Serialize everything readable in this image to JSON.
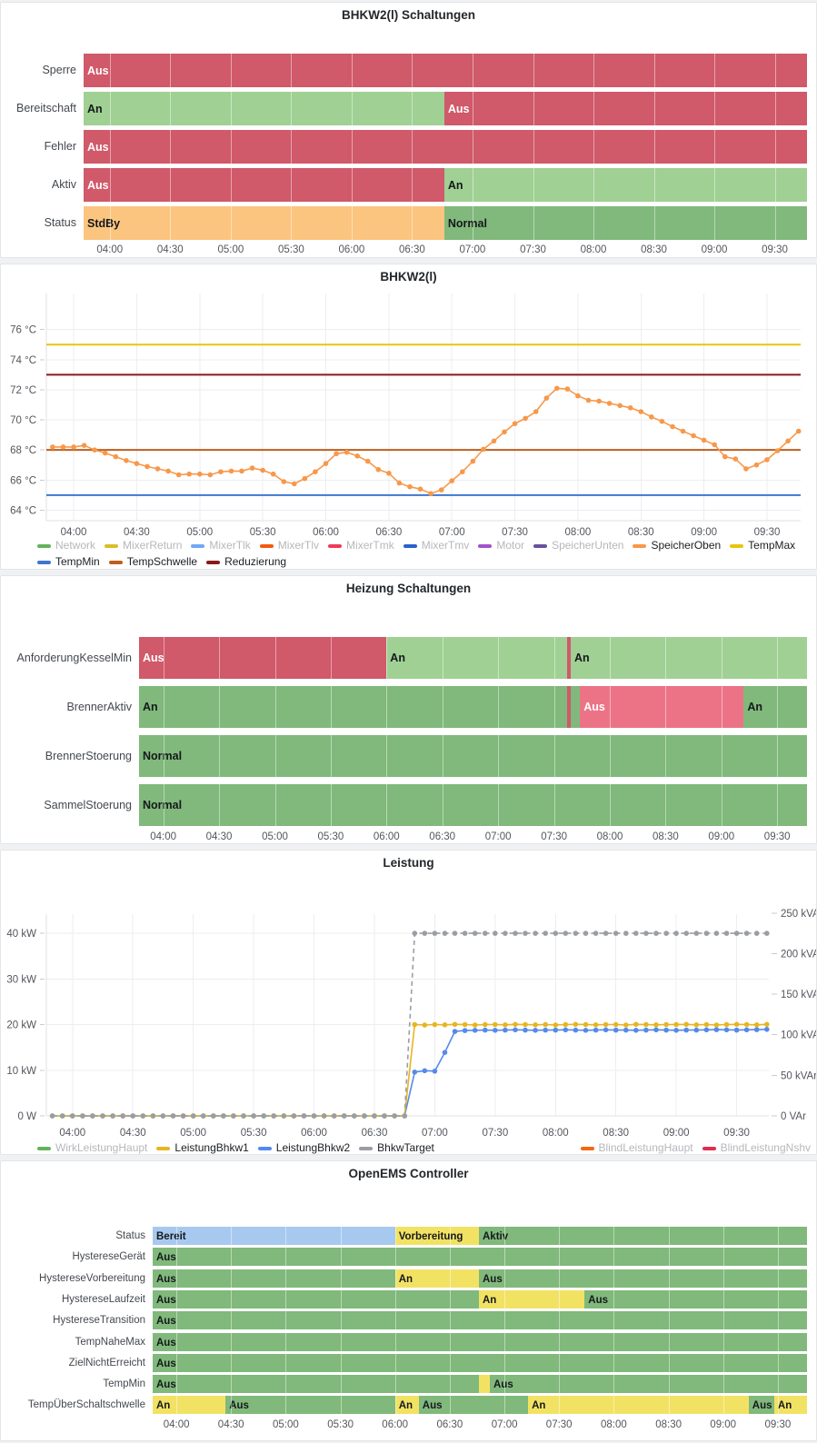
{
  "palette": {
    "red": "#D0596A",
    "lightRed": "#EC7386",
    "green": "#80B97B",
    "lightGreen": "#A0D094",
    "orange": "#FBC57F",
    "stateBlue": "#A8C9EF",
    "stateYellow": "#F2E264"
  },
  "time_axis": {
    "start": "03:47",
    "end": "09:46",
    "ticks": [
      "04:00",
      "04:30",
      "05:00",
      "05:30",
      "06:00",
      "06:30",
      "07:00",
      "07:30",
      "08:00",
      "08:30",
      "09:00",
      "09:30"
    ]
  },
  "chart_data": [
    {
      "id": "p1",
      "type": "state-timeline",
      "title": "BHKW2(l) Schaltungen",
      "rows": [
        {
          "label": "Sperre",
          "segments": [
            [
              "Aus",
              "red",
              "03:47",
              "09:46",
              1
            ]
          ]
        },
        {
          "label": "Bereitschaft",
          "segments": [
            [
              "An",
              "lightGreen",
              "03:47",
              "06:46",
              1
            ],
            [
              "Aus",
              "red",
              "06:46",
              "09:46",
              1
            ]
          ]
        },
        {
          "label": "Fehler",
          "segments": [
            [
              "Aus",
              "red",
              "03:47",
              "09:46",
              1
            ]
          ]
        },
        {
          "label": "Aktiv",
          "segments": [
            [
              "Aus",
              "red",
              "03:47",
              "06:46",
              1
            ],
            [
              "An",
              "lightGreen",
              "06:46",
              "09:46",
              1
            ]
          ]
        },
        {
          "label": "Status",
          "segments": [
            [
              "StdBy",
              "orange",
              "03:47",
              "06:46",
              1
            ],
            [
              "Normal",
              "green",
              "06:46",
              "09:46",
              1
            ]
          ]
        }
      ]
    },
    {
      "id": "p2",
      "type": "line",
      "title": "BHKW2(l)",
      "ylim": [
        63.3,
        78.4
      ],
      "yticks": [
        {
          "v": 64,
          "label": "64 °C"
        },
        {
          "v": 66,
          "label": "66 °C"
        },
        {
          "v": 68,
          "label": "68 °C"
        },
        {
          "v": 70,
          "label": "70 °C"
        },
        {
          "v": 72,
          "label": "72 °C"
        },
        {
          "v": 74,
          "label": "74 °C"
        },
        {
          "v": 76,
          "label": "76 °C"
        }
      ],
      "x_start": "03:50",
      "x_step_min": 5,
      "thresholds": [
        {
          "name": "TempMax",
          "value": 75,
          "color": "#E9C410"
        },
        {
          "name": "Reduzierung",
          "value": 73,
          "color": "#8A1A1A"
        },
        {
          "name": "TempSchwelle",
          "value": 68,
          "color": "#BE5E1E"
        },
        {
          "name": "TempMin",
          "value": 65,
          "color": "#3E76D0"
        }
      ],
      "series": [
        {
          "name": "SpeicherOben",
          "color": "#F7984A",
          "dash": false,
          "markers": true,
          "values": [
            68.2,
            68.2,
            68.2,
            68.3,
            68.0,
            67.8,
            67.55,
            67.3,
            67.1,
            66.9,
            66.75,
            66.6,
            66.35,
            66.4,
            66.4,
            66.35,
            66.55,
            66.6,
            66.6,
            66.8,
            66.65,
            66.4,
            65.9,
            65.75,
            66.1,
            66.55,
            67.1,
            67.75,
            67.85,
            67.6,
            67.25,
            66.7,
            66.45,
            65.8,
            65.55,
            65.4,
            65.1,
            65.35,
            65.95,
            66.55,
            67.25,
            68.05,
            68.6,
            69.2,
            69.75,
            70.1,
            70.55,
            71.45,
            72.1,
            72.05,
            71.6,
            71.3,
            71.25,
            71.1,
            70.95,
            70.8,
            70.55,
            70.2,
            69.9,
            69.55,
            69.25,
            68.95,
            68.65,
            68.35,
            67.55,
            67.4,
            66.75,
            67.0,
            67.35,
            67.95,
            68.6,
            69.25
          ]
        }
      ],
      "legend": {
        "left": [
          {
            "label": "Network",
            "color": "#62B35A",
            "active": false
          },
          {
            "label": "MixerReturn",
            "color": "#D9BE26",
            "active": false
          },
          {
            "label": "MixerTlk",
            "color": "#6FA9F2",
            "active": false
          },
          {
            "label": "MixerTlv",
            "color": "#F4590F",
            "active": false
          },
          {
            "label": "MixerTmk",
            "color": "#EF3B58",
            "active": false
          },
          {
            "label": "MixerTmv",
            "color": "#2A62CE",
            "active": false
          },
          {
            "label": "Motor",
            "color": "#A352CC",
            "active": false
          },
          {
            "label": "SpeicherUnten",
            "color": "#69519E",
            "active": false
          },
          {
            "label": "SpeicherOben",
            "color": "#F7984A",
            "active": true
          },
          {
            "label": "TempMax",
            "color": "#E9C410",
            "active": true
          },
          {
            "label": "TempMin",
            "color": "#3E76D0",
            "active": true
          },
          {
            "label": "TempSchwelle",
            "color": "#BE5E1E",
            "active": true
          },
          {
            "label": "Reduzierung",
            "color": "#8A1A1A",
            "active": true
          }
        ],
        "right": []
      }
    },
    {
      "id": "p3",
      "type": "state-timeline",
      "title": "Heizung Schaltungen",
      "rows": [
        {
          "label": "AnforderungKesselMin",
          "segments": [
            [
              "Aus",
              "red",
              "03:47",
              "06:00",
              1
            ],
            [
              "An",
              "lightGreen",
              "06:00",
              "07:37",
              1
            ],
            [
              "",
              "red",
              "07:37",
              "07:39",
              0
            ],
            [
              "An",
              "lightGreen",
              "07:39",
              "09:46",
              1
            ]
          ]
        },
        {
          "label": "BrennerAktiv",
          "segments": [
            [
              "An",
              "green",
              "03:47",
              "07:37",
              1
            ],
            [
              "",
              "red",
              "07:37",
              "07:39",
              0
            ],
            [
              "",
              "green",
              "07:39",
              "07:44",
              0
            ],
            [
              "Aus",
              "lightRed",
              "07:44",
              "09:12",
              1
            ],
            [
              "An",
              "green",
              "09:12",
              "09:46",
              1
            ]
          ]
        },
        {
          "label": "BrennerStoerung",
          "segments": [
            [
              "Normal",
              "green",
              "03:47",
              "09:46",
              1
            ]
          ]
        },
        {
          "label": "SammelStoerung",
          "segments": [
            [
              "Normal",
              "green",
              "03:47",
              "09:46",
              1
            ]
          ]
        }
      ]
    },
    {
      "id": "p4",
      "type": "line",
      "title": "Leistung",
      "ylim": [
        0,
        44.2
      ],
      "yticks": [
        {
          "v": 0,
          "label": "0 W"
        },
        {
          "v": 10,
          "label": "10 kW"
        },
        {
          "v": 20,
          "label": "20 kW"
        },
        {
          "v": 30,
          "label": "30 kW"
        },
        {
          "v": 40,
          "label": "40 kW"
        }
      ],
      "right_axis": {
        "kw_per_var": 0.17778,
        "ticks": [
          {
            "v": 0,
            "label": "0 VAr"
          },
          {
            "v": 50,
            "label": "50 kVAr"
          },
          {
            "v": 100,
            "label": "100 kVAr"
          },
          {
            "v": 150,
            "label": "150 kVAr"
          },
          {
            "v": 200,
            "label": "200 kVAr"
          },
          {
            "v": 250,
            "label": "250 kVAr"
          }
        ]
      },
      "x_start": "03:50",
      "x_step_min": 5,
      "thresholds": [],
      "series": [
        {
          "name": "LeistungBhkw2",
          "color": "#548AEB",
          "dash": false,
          "markers": true,
          "values": [
            0,
            0,
            0,
            0,
            0,
            0,
            0,
            0,
            0,
            0,
            0,
            0,
            0,
            0,
            0,
            0,
            0,
            0,
            0,
            0,
            0,
            0,
            0,
            0,
            0,
            0,
            0,
            0,
            0,
            0,
            0,
            0,
            0,
            0,
            0,
            0,
            9.6,
            9.9,
            9.8,
            13.9,
            18.5,
            18.7,
            18.75,
            18.8,
            18.75,
            18.8,
            18.85,
            18.8,
            18.75,
            18.8,
            18.8,
            18.85,
            18.8,
            18.75,
            18.8,
            18.85,
            18.8,
            18.8,
            18.75,
            18.8,
            18.85,
            18.8,
            18.75,
            18.8,
            18.8,
            18.85,
            18.9,
            18.85,
            18.8,
            18.85,
            18.9,
            18.95
          ]
        },
        {
          "name": "LeistungBhkw1",
          "color": "#E8B421",
          "dash": false,
          "markers": true,
          "values": [
            0,
            0,
            0,
            0,
            0,
            0,
            0,
            0,
            0,
            0,
            0,
            0,
            0,
            0,
            0,
            0,
            0,
            0,
            0,
            0,
            0,
            0,
            0,
            0,
            0,
            0,
            0,
            0,
            0,
            0,
            0,
            0,
            0,
            0,
            0,
            0,
            20,
            19.9,
            20,
            19.95,
            20.05,
            20,
            19.9,
            20,
            20,
            19.95,
            20.05,
            20,
            19.95,
            20,
            19.9,
            20,
            20.05,
            20,
            19.95,
            20,
            20,
            19.9,
            20.05,
            20,
            19.95,
            20,
            20,
            20.05,
            19.95,
            20,
            19.9,
            20,
            20.05,
            20,
            19.95,
            20.05
          ]
        },
        {
          "name": "BhkwTarget",
          "color": "#9A9EA3",
          "dash": true,
          "markers": true,
          "values": [
            0,
            0,
            0,
            0,
            0,
            0,
            0,
            0,
            0,
            0,
            0,
            0,
            0,
            0,
            0,
            0,
            0,
            0,
            0,
            0,
            0,
            0,
            0,
            0,
            0,
            0,
            0,
            0,
            0,
            0,
            0,
            0,
            0,
            0,
            0,
            0,
            40,
            40,
            40,
            40,
            40,
            40,
            40,
            40,
            40,
            40,
            40,
            40,
            40,
            40,
            40,
            40,
            40,
            40,
            40,
            40,
            40,
            40,
            40,
            40,
            40,
            40,
            40,
            40,
            40,
            40,
            40,
            40,
            40,
            40,
            40,
            40
          ]
        }
      ],
      "legend": {
        "left": [
          {
            "label": "WirkLeistungHaupt",
            "color": "#62B35A",
            "active": false
          },
          {
            "label": "LeistungBhkw1",
            "color": "#E8B421",
            "active": true
          },
          {
            "label": "LeistungBhkw2",
            "color": "#548AEB",
            "active": true
          },
          {
            "label": "BhkwTarget",
            "color": "#9A9EA3",
            "active": true
          }
        ],
        "right": [
          {
            "label": "BlindLeistungHaupt",
            "color": "#F4680F",
            "active": false
          },
          {
            "label": "BlindLeistungNshv",
            "color": "#E02D50",
            "active": false
          }
        ]
      }
    },
    {
      "id": "p5",
      "type": "state-timeline",
      "title": "OpenEMS Controller",
      "rows": [
        {
          "label": "Status",
          "segments": [
            [
              "Bereit",
              "stateBlue",
              "03:47",
              "06:00",
              1
            ],
            [
              "Vorbereitung",
              "stateYellow",
              "06:00",
              "06:46",
              1
            ],
            [
              "Aktiv",
              "green",
              "06:46",
              "09:46",
              1
            ]
          ]
        },
        {
          "label": "HystereseGerät",
          "segments": [
            [
              "Aus",
              "green",
              "03:47",
              "09:46",
              1
            ]
          ]
        },
        {
          "label": "HystereseVorbereitung",
          "segments": [
            [
              "Aus",
              "green",
              "03:47",
              "06:00",
              1
            ],
            [
              "An",
              "stateYellow",
              "06:00",
              "06:46",
              1
            ],
            [
              "Aus",
              "green",
              "06:46",
              "09:46",
              1
            ]
          ]
        },
        {
          "label": "HystereseLaufzeit",
          "segments": [
            [
              "Aus",
              "green",
              "03:47",
              "06:46",
              1
            ],
            [
              "An",
              "stateYellow",
              "06:46",
              "07:44",
              1
            ],
            [
              "Aus",
              "green",
              "07:44",
              "09:46",
              1
            ]
          ]
        },
        {
          "label": "HystereseTransition",
          "segments": [
            [
              "Aus",
              "green",
              "03:47",
              "09:46",
              1
            ]
          ]
        },
        {
          "label": "TempNaheMax",
          "segments": [
            [
              "Aus",
              "green",
              "03:47",
              "09:46",
              1
            ]
          ]
        },
        {
          "label": "ZielNichtErreicht",
          "segments": [
            [
              "Aus",
              "green",
              "03:47",
              "09:46",
              1
            ]
          ]
        },
        {
          "label": "TempMin",
          "segments": [
            [
              "Aus",
              "green",
              "03:47",
              "06:46",
              1
            ],
            [
              "",
              "stateYellow",
              "06:46",
              "06:52",
              0
            ],
            [
              "Aus",
              "green",
              "06:52",
              "09:46",
              1
            ]
          ]
        },
        {
          "label": "TempÜberSchaltschwelle",
          "segments": [
            [
              "An",
              "stateYellow",
              "03:47",
              "04:27",
              1
            ],
            [
              "Aus",
              "green",
              "04:27",
              "06:00",
              1
            ],
            [
              "An",
              "stateYellow",
              "06:00",
              "06:13",
              1
            ],
            [
              "Aus",
              "green",
              "06:13",
              "07:13",
              1
            ],
            [
              "An",
              "stateYellow",
              "07:13",
              "09:14",
              1
            ],
            [
              "Aus",
              "green",
              "09:14",
              "09:28",
              1
            ],
            [
              "An",
              "stateYellow",
              "09:28",
              "09:46",
              1
            ]
          ]
        }
      ]
    }
  ]
}
